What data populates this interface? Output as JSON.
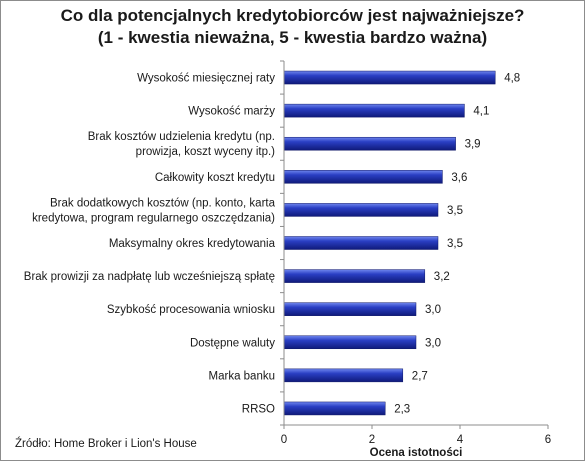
{
  "chart_data": {
    "type": "bar",
    "orientation": "horizontal",
    "title_lines": [
      "Co dla potencjalnych kredytobiorców jest najważniejsze?",
      "(1 - kwestia nieważna, 5 - kwestia bardzo ważna)"
    ],
    "categories": [
      [
        "Wysokość miesięcznej raty"
      ],
      [
        "Wysokość marży"
      ],
      [
        "Brak kosztów udzielenia kredytu (np.",
        "prowizja, koszt wyceny itp.)"
      ],
      [
        "Całkowity koszt kredytu"
      ],
      [
        "Brak dodatkowych kosztów (np. konto, karta",
        "kredytowa, program regularnego oszczędzania)"
      ],
      [
        "Maksymalny okres kredytowania"
      ],
      [
        "Brak prowizji za nadpłatę lub wcześniejszą spłatę"
      ],
      [
        "Szybkość procesowania wniosku"
      ],
      [
        "Dostępne waluty"
      ],
      [
        "Marka banku"
      ],
      [
        "RRSO"
      ]
    ],
    "values": [
      4.8,
      4.1,
      3.9,
      3.6,
      3.5,
      3.5,
      3.2,
      3.0,
      3.0,
      2.7,
      2.3
    ],
    "value_labels": [
      "4,8",
      "4,1",
      "3,9",
      "3,6",
      "3,5",
      "3,5",
      "3,2",
      "3,0",
      "3,0",
      "2,7",
      "2,3"
    ],
    "xlabel": "Ocena istotności",
    "xlim": [
      0,
      6
    ],
    "xticks": [
      0,
      2,
      4,
      6
    ],
    "grid": false,
    "bar_color": "#1f2fa8"
  },
  "source": "Źródło: Home Broker i Lion's House"
}
